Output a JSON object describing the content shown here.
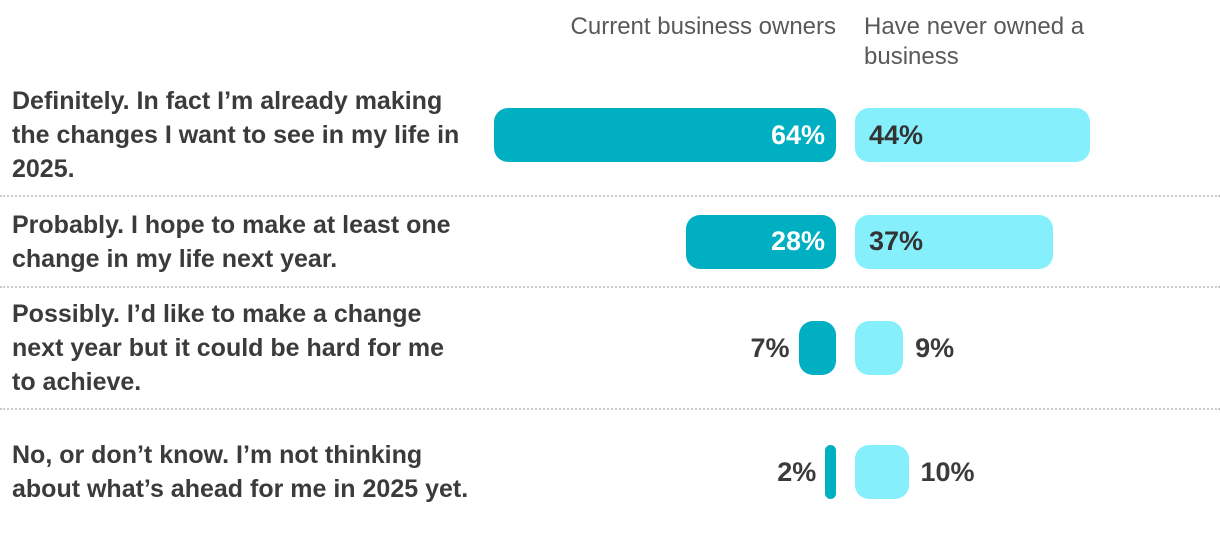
{
  "chart_data": {
    "type": "bar",
    "orientation": "horizontal",
    "categories": [
      "Definitely. In fact I’m already making the changes I want to see in my life in 2025.",
      "Probably. I hope to make at least one change in my life next year.",
      "Possibly. I’d like to make a change next year but it could be hard for me to achieve.",
      "No, or don’t know. I’m not thinking about what’s ahead for me in 2025 yet."
    ],
    "series": [
      {
        "name": "Current business owners",
        "values": [
          64,
          28,
          7,
          2
        ]
      },
      {
        "name": "Have never owned a business",
        "values": [
          44,
          37,
          9,
          10
        ]
      }
    ],
    "value_format": "percent",
    "xlim": [
      0,
      100
    ],
    "grid": false,
    "legend_position": "column-headers-top",
    "colors": {
      "series1": "#00afc2",
      "series2": "#85f0fc"
    }
  },
  "headers": {
    "col1": "Current business owners",
    "col2": "Have never owned a business"
  },
  "rows": [
    {
      "label": "Definitely. In fact I’m already making the changes I want to see in my life in 2025.",
      "owner": {
        "value": 64,
        "display": "64%"
      },
      "never": {
        "value": 44,
        "display": "44%"
      }
    },
    {
      "label": "Probably. I hope to make at least one change in my life next year.",
      "owner": {
        "value": 28,
        "display": "28%"
      },
      "never": {
        "value": 37,
        "display": "37%"
      }
    },
    {
      "label": "Possibly. I’d like to make a change next year but it could be hard for me to achieve.",
      "owner": {
        "value": 7,
        "display": "7%"
      },
      "never": {
        "value": 9,
        "display": "9%"
      }
    },
    {
      "label": "No, or don’t know. I’m not thinking about what’s ahead for me in 2025 yet.",
      "owner": {
        "value": 2,
        "display": "2%"
      },
      "never": {
        "value": 10,
        "display": "10%"
      }
    }
  ],
  "colors": {
    "owner_bar": "#00afc2",
    "never_bar": "#85f0fc",
    "owner_value_text": "#ffffff",
    "never_value_text": "#333333",
    "label_text": "#3b3b3b",
    "header_text": "#595959",
    "divider": "#cdcdcd",
    "background": "#ffffff"
  }
}
